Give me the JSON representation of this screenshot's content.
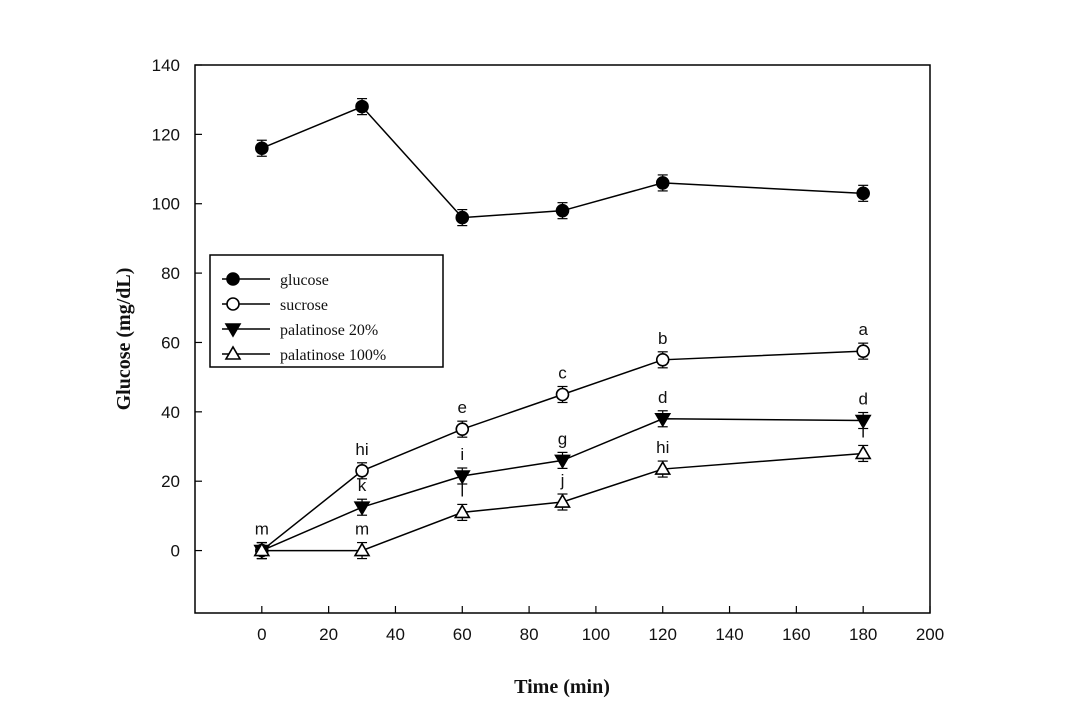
{
  "chart_data": {
    "type": "line",
    "title": "",
    "xlabel": "Time (min)",
    "ylabel": "Glucose (mg/dL)",
    "xlim": [
      -20,
      200
    ],
    "ylim": [
      -18,
      140
    ],
    "xticks": [
      0,
      20,
      40,
      60,
      80,
      100,
      120,
      140,
      160,
      180,
      200
    ],
    "yticks": [
      0,
      20,
      40,
      60,
      80,
      100,
      120,
      140
    ],
    "legend_position": "center-left",
    "series": [
      {
        "name": "glucose",
        "marker": "filled-circle",
        "x": [
          0,
          30,
          60,
          90,
          120,
          180
        ],
        "y": [
          116,
          128,
          96,
          98,
          106,
          103
        ],
        "labels": [
          "",
          "",
          "",
          "",
          "",
          ""
        ]
      },
      {
        "name": "sucrose",
        "marker": "open-circle",
        "x": [
          0,
          30,
          60,
          90,
          120,
          180
        ],
        "y": [
          0,
          23,
          35,
          45,
          55,
          57.5
        ],
        "labels": [
          "m",
          "hi",
          "e",
          "c",
          "b",
          "a"
        ]
      },
      {
        "name": "palatinose 20%",
        "marker": "filled-triangle-down",
        "x": [
          0,
          30,
          60,
          90,
          120,
          180
        ],
        "y": [
          0,
          12.5,
          21.5,
          26,
          38,
          37.5
        ],
        "labels": [
          "",
          "k",
          "i",
          "g",
          "d",
          "d"
        ]
      },
      {
        "name": "palatinose 100%",
        "marker": "open-triangle-up",
        "x": [
          0,
          30,
          60,
          90,
          120,
          180
        ],
        "y": [
          0,
          0,
          11,
          14,
          23.5,
          28
        ],
        "labels": [
          "",
          "m",
          "l",
          "j",
          "hi",
          "i"
        ]
      }
    ]
  }
}
